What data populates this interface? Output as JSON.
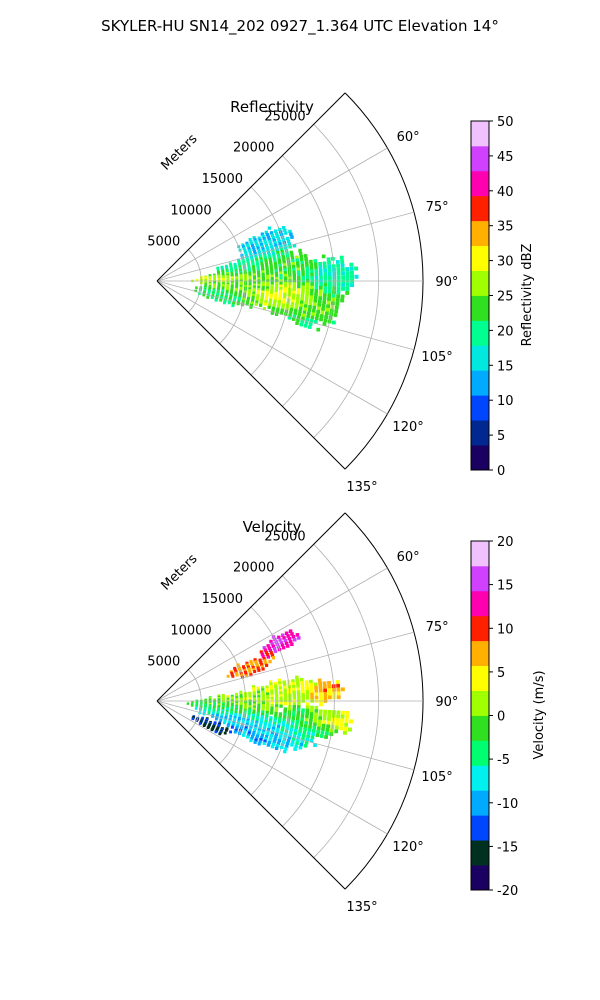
{
  "figure": {
    "suptitle": "SKYLER-HU  SN14_202  0927_1.364 UTC Elevation 14°"
  },
  "chart_data": [
    {
      "type": "heatmap",
      "projection": "polar-sector",
      "title": "Reflectivity",
      "range_label": "Meters",
      "range_ticks": [
        5000,
        10000,
        15000,
        20000,
        25000
      ],
      "range_max": 30000,
      "azimuth_ticks": [
        "60°",
        "75°",
        "90°",
        "105°",
        "120°",
        "135°"
      ],
      "azimuth_tick_values": [
        60,
        75,
        90,
        105,
        120,
        135
      ],
      "azimuth_range": [
        45,
        135
      ],
      "grid": true,
      "colorbar": {
        "label": "Reflectivity dBZ",
        "ticks": [
          "0",
          "5",
          "10",
          "15",
          "20",
          "25",
          "30",
          "35",
          "40",
          "45",
          "50"
        ],
        "vmin": 0,
        "vmax": 50,
        "colors": [
          "#1a0060",
          "#002890",
          "#0046ff",
          "#00aaff",
          "#00e8e0",
          "#00ff90",
          "#30e020",
          "#a0ff00",
          "#ffff00",
          "#ffb000",
          "#ff2000",
          "#ff00b0",
          "#d040ff",
          "#f0c0ff"
        ]
      },
      "echo_blobs": [
        {
          "az": 97,
          "r": 15000,
          "sa": 5,
          "sr": 4000,
          "v": 33
        },
        {
          "az": 88,
          "r": 7500,
          "sa": 4,
          "sr": 2500,
          "v": 29
        },
        {
          "az": 92,
          "r": 10000,
          "sa": 7,
          "sr": 4000,
          "v": 24
        },
        {
          "az": 83,
          "r": 14000,
          "sa": 6,
          "sr": 3500,
          "v": 23
        },
        {
          "az": 102,
          "r": 8000,
          "sa": 5,
          "sr": 3000,
          "v": 21
        },
        {
          "az": 80,
          "r": 10000,
          "sa": 4,
          "sr": 3000,
          "v": 19
        },
        {
          "az": 70,
          "r": 13000,
          "sa": 5,
          "sr": 3000,
          "v": 15
        },
        {
          "az": 100,
          "r": 17000,
          "sa": 6,
          "sr": 3000,
          "v": 20
        },
        {
          "az": 88,
          "r": 20000,
          "sa": 5,
          "sr": 2500,
          "v": 18
        }
      ]
    },
    {
      "type": "heatmap",
      "projection": "polar-sector",
      "title": "Velocity",
      "range_label": "Meters",
      "range_ticks": [
        5000,
        10000,
        15000,
        20000,
        25000
      ],
      "range_max": 30000,
      "azimuth_ticks": [
        "60°",
        "75°",
        "90°",
        "105°",
        "120°",
        "135°"
      ],
      "azimuth_tick_values": [
        60,
        75,
        90,
        105,
        120,
        135
      ],
      "azimuth_range": [
        45,
        135
      ],
      "grid": true,
      "colorbar": {
        "label": "Velocity (m/s)",
        "ticks": [
          "-20",
          "-15",
          "-10",
          "-5",
          "0",
          "5",
          "10",
          "15",
          "20"
        ],
        "vmin": -20,
        "vmax": 20,
        "colors": [
          "#1a0060",
          "#003020",
          "#0046ff",
          "#00aaff",
          "#00f0f0",
          "#00ff70",
          "#30e020",
          "#a0ff00",
          "#ffff00",
          "#ffb000",
          "#ff2000",
          "#ff00b0",
          "#d040ff",
          "#f0c0ff"
        ]
      },
      "echo_blobs": [
        {
          "az": 90,
          "r": 10000,
          "sa": 6,
          "sr": 4000,
          "v": 1
        },
        {
          "az": 95,
          "r": 7000,
          "sa": 5,
          "sr": 3000,
          "v": -3
        },
        {
          "az": 102,
          "r": 9000,
          "sa": 5,
          "sr": 3500,
          "v": -8
        },
        {
          "az": 108,
          "r": 12000,
          "sa": 4,
          "sr": 3000,
          "v": -11
        },
        {
          "az": 114,
          "r": 6500,
          "sa": 4,
          "sr": 2000,
          "v": -15
        },
        {
          "az": 70,
          "r": 11000,
          "sa": 4,
          "sr": 2500,
          "v": 9
        },
        {
          "az": 64,
          "r": 15500,
          "sa": 3,
          "sr": 2000,
          "v": 14
        },
        {
          "az": 85,
          "r": 15000,
          "sa": 5,
          "sr": 3000,
          "v": 3
        },
        {
          "az": 98,
          "r": 17000,
          "sa": 5,
          "sr": 2500,
          "v": -4
        },
        {
          "az": 86,
          "r": 19000,
          "sa": 3,
          "sr": 2000,
          "v": 7
        },
        {
          "az": 96,
          "r": 19500,
          "sa": 3,
          "sr": 2500,
          "v": 4
        },
        {
          "az": 104,
          "r": 14000,
          "sa": 5,
          "sr": 3000,
          "v": -7
        }
      ]
    }
  ]
}
